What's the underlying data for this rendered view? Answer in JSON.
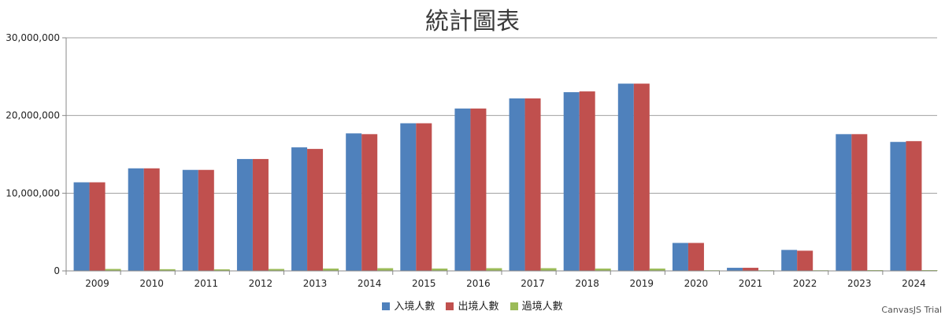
{
  "chart_data": {
    "type": "bar",
    "title": "統計圖表",
    "xlabel": "",
    "ylabel": "",
    "ylim": [
      0,
      30000000
    ],
    "yticks": [
      0,
      10000000,
      20000000,
      30000000
    ],
    "ytick_labels": [
      "0",
      "10,000,000",
      "20,000,000",
      "30,000,000"
    ],
    "grid": true,
    "legend_position": "bottom",
    "categories": [
      "2009",
      "2010",
      "2011",
      "2012",
      "2013",
      "2014",
      "2015",
      "2016",
      "2017",
      "2018",
      "2019",
      "2020",
      "2021",
      "2022",
      "2023",
      "2024"
    ],
    "series": [
      {
        "name": "入境人數",
        "color": "#4f81bc",
        "values": [
          11400000,
          13200000,
          13000000,
          14400000,
          15900000,
          17700000,
          19000000,
          20900000,
          22200000,
          23000000,
          24100000,
          3600000,
          400000,
          2700000,
          17600000,
          16600000
        ]
      },
      {
        "name": "出境人數",
        "color": "#c0504e",
        "values": [
          11400000,
          13200000,
          13000000,
          14400000,
          15700000,
          17600000,
          19000000,
          20900000,
          22200000,
          23100000,
          24100000,
          3600000,
          400000,
          2600000,
          17600000,
          16700000
        ]
      },
      {
        "name": "過境人數",
        "color": "#9bbb58",
        "values": [
          250000,
          220000,
          200000,
          250000,
          300000,
          350000,
          300000,
          350000,
          350000,
          300000,
          300000,
          50000,
          10000,
          20000,
          100000,
          100000
        ]
      }
    ]
  },
  "credit": "CanvasJS Trial"
}
